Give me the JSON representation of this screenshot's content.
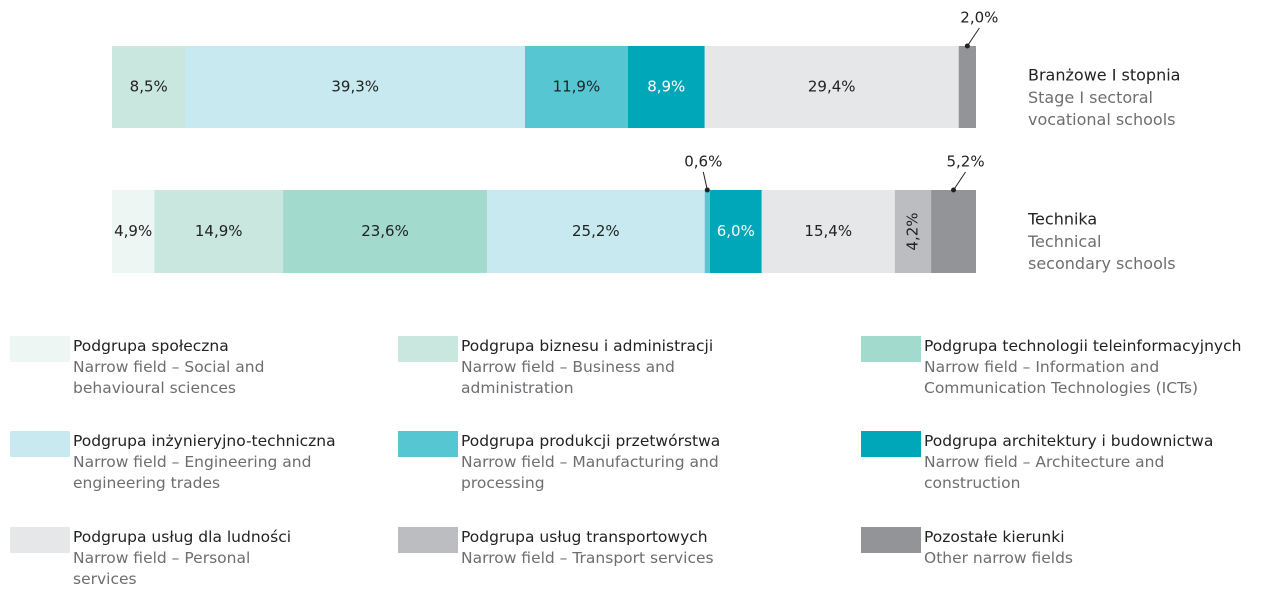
{
  "chart_data": {
    "type": "stacked-bar-horizontal",
    "categories": [
      "Branżowe I stopnia",
      "Technika"
    ],
    "categories_en": [
      "Stage I sectoral vocational schools",
      "Technical secondary schools"
    ],
    "xlim": [
      0,
      100
    ],
    "series": [
      {
        "name": "Podgrupa społeczna",
        "name_en": "Narrow field – Social and behavioural sciences",
        "color": "#eef6f3",
        "values": [
          null,
          4.9
        ],
        "value_labels": [
          null,
          "4,9%"
        ]
      },
      {
        "name": "Podgrupa biznesu i administracji",
        "name_en": "Narrow field – Business and administration",
        "color": "#c9e6df",
        "values": [
          8.5,
          14.9
        ],
        "value_labels": [
          "8,5%",
          "14,9%"
        ]
      },
      {
        "name": "Podgrupa technologii teleinformacyjnych",
        "name_en": "Narrow field – Information and Communication Technologies (ICTs)",
        "color": "#a2dacd",
        "values": [
          null,
          23.6
        ],
        "value_labels": [
          null,
          "23,6%"
        ]
      },
      {
        "name": "Podgrupa inżynieryjno-techniczna",
        "name_en": "Narrow field – Engineering and engineering trades",
        "color": "#c8e9ef",
        "values": [
          39.3,
          25.2
        ],
        "value_labels": [
          "39,3%",
          "25,2%"
        ]
      },
      {
        "name": "Podgrupa produkcji przetwórstwa",
        "name_en": "Narrow field – Manufacturing and processing",
        "color": "#56c6d3",
        "values": [
          11.9,
          0.6
        ],
        "value_labels": [
          "11,9%",
          "0,6%"
        ]
      },
      {
        "name": "Podgrupa architektury i budownictwa",
        "name_en": "Narrow field – Architecture and construction",
        "color": "#00a7b8",
        "values": [
          8.9,
          6.0
        ],
        "value_labels": [
          "8,9%",
          "6,0%"
        ]
      },
      {
        "name": "Podgrupa usług dla ludności",
        "name_en": "Narrow field – Personal services",
        "color": "#e6e7e9",
        "values": [
          29.4,
          15.4
        ],
        "value_labels": [
          "29,4%",
          "15,4%"
        ]
      },
      {
        "name": "Podgrupa usług transportowych",
        "name_en": "Narrow field – Transport services",
        "color": "#bcbdc1",
        "values": [
          null,
          4.2
        ],
        "value_labels": [
          null,
          "4,2%"
        ]
      },
      {
        "name": "Pozostałe kierunki",
        "name_en": "Other narrow fields",
        "color": "#929497",
        "values": [
          2.0,
          5.2
        ],
        "value_labels": [
          "2,0%",
          "5,2%"
        ]
      }
    ]
  }
}
